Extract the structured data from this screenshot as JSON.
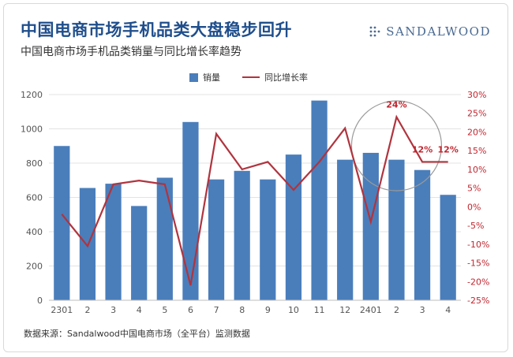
{
  "header": {
    "title": "中国电商市场手机品类大盘稳步回升",
    "subtitle": "中国电商市场手机品类销量与同比增长率趋势",
    "brand": "SANDALWOOD",
    "brand_icon": "dot-grid-icon"
  },
  "footer": {
    "source": "数据来源：Sandalwood中国电商市场（全平台）监测数据"
  },
  "colors": {
    "bar": "#4a7ebb",
    "line": "#b0343e",
    "right_axis_text": "#c0262f",
    "title": "#1f4e8c"
  },
  "chart_data": {
    "type": "bar",
    "categories": [
      "2301",
      "2",
      "3",
      "4",
      "5",
      "6",
      "7",
      "8",
      "9",
      "10",
      "11",
      "12",
      "2401",
      "2",
      "3",
      "4"
    ],
    "series": [
      {
        "name": "销量",
        "type": "bar",
        "axis": "left",
        "values": [
          900,
          655,
          680,
          550,
          715,
          1040,
          705,
          755,
          705,
          850,
          1165,
          820,
          860,
          820,
          760,
          615
        ]
      },
      {
        "name": "同比增长率",
        "type": "line",
        "axis": "right",
        "unit": "%",
        "values": [
          -2,
          -10.5,
          6,
          7,
          6,
          -21,
          19.5,
          10,
          12,
          4.5,
          12,
          21,
          -4,
          24,
          12,
          12
        ]
      }
    ],
    "ylim_left": [
      0,
      1200
    ],
    "yticks_left": [
      "0",
      "200",
      "400",
      "600",
      "800",
      "1000",
      "1200"
    ],
    "ylim_right": [
      -25,
      30
    ],
    "yticks_right": [
      "-25%",
      "-20%",
      "-15%",
      "-10%",
      "-5%",
      "0%",
      "5%",
      "10%",
      "15%",
      "20%",
      "25%",
      "30%"
    ],
    "annotations": [
      {
        "index": 13,
        "text": "24%"
      },
      {
        "index": 14,
        "text": "12%"
      },
      {
        "index": 15,
        "text": "12%"
      }
    ],
    "highlight_circle": {
      "covers_indices": [
        12,
        13,
        14
      ]
    },
    "legend_position": "top",
    "grid": true
  }
}
